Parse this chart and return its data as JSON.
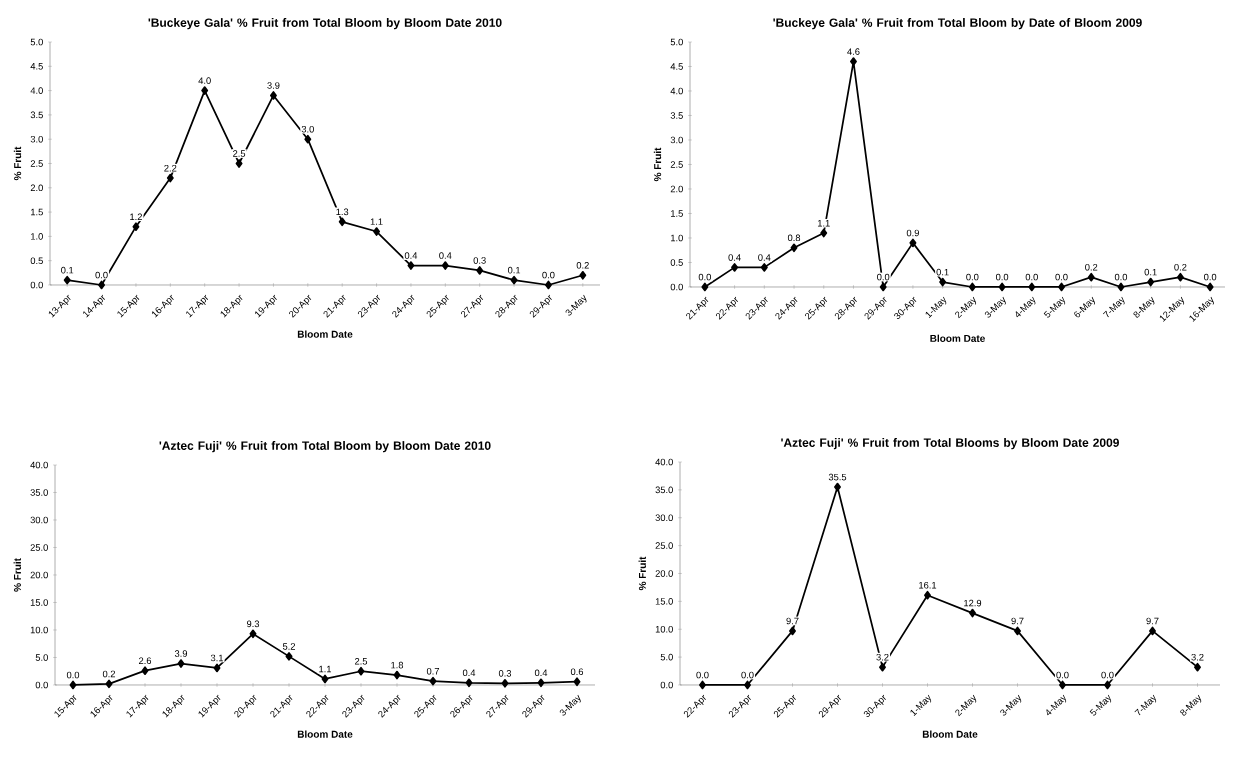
{
  "chart_data": [
    {
      "type": "line",
      "title": "'Buckeye Gala' % Fruit from Total Bloom by Bloom Date 2010",
      "xlabel": "Bloom Date",
      "ylabel": "% Fruit",
      "color": "#000000",
      "marker": "diamond",
      "categories": [
        "13-Apr",
        "14-Apr",
        "15-Apr",
        "16-Apr",
        "17-Apr",
        "18-Apr",
        "19-Apr",
        "20-Apr",
        "21-Apr",
        "23-Apr",
        "24-Apr",
        "25-Apr",
        "27-Apr",
        "28-Apr",
        "29-Apr",
        "3-May"
      ],
      "values": [
        0.1,
        0.0,
        1.2,
        2.2,
        4.0,
        2.5,
        3.9,
        3.0,
        1.3,
        1.1,
        0.4,
        0.4,
        0.3,
        0.1,
        0.0,
        0.2
      ],
      "value_labels": [
        "0.1",
        "0.0",
        "1.2",
        "2.2",
        "4.0",
        "2.5",
        "3.9",
        "3.0",
        "1.3",
        "1.1",
        "0.4",
        "0.4",
        "0.3",
        "0.1",
        "0.0",
        "0.2"
      ],
      "ylim": [
        0,
        5
      ],
      "yticks": [
        {
          "value": 0,
          "label": "0.0"
        },
        {
          "value": 0.5,
          "label": "0.5"
        },
        {
          "value": 1,
          "label": "1.0"
        },
        {
          "value": 1.5,
          "label": "1.5"
        },
        {
          "value": 2,
          "label": "2.0"
        },
        {
          "value": 2.5,
          "label": "2.5"
        },
        {
          "value": 3,
          "label": "3.0"
        },
        {
          "value": 3.5,
          "label": "3.5"
        },
        {
          "value": 4,
          "label": "4.0"
        },
        {
          "value": 4.5,
          "label": "4.5"
        },
        {
          "value": 5,
          "label": "5.0"
        }
      ]
    },
    {
      "type": "line",
      "title": "'Buckeye Gala' % Fruit from Total Bloom by Date of Bloom 2009",
      "xlabel": "Bloom Date",
      "ylabel": "% Fruit",
      "color": "#000000",
      "marker": "diamond",
      "categories": [
        "21-Apr",
        "22-Apr",
        "23-Apr",
        "24-Apr",
        "25-Apr",
        "28-Apr",
        "29-Apr",
        "30-Apr",
        "1-May",
        "2-May",
        "3-May",
        "4-May",
        "5-May",
        "6-May",
        "7-May",
        "8-May",
        "12-May",
        "16-May"
      ],
      "values": [
        0.0,
        0.4,
        0.4,
        0.8,
        1.1,
        4.6,
        0.0,
        0.9,
        0.1,
        0.0,
        0.0,
        0.0,
        0.0,
        0.2,
        0.0,
        0.1,
        0.2,
        0.0
      ],
      "value_labels": [
        "0.0",
        "0.4",
        "0.4",
        "0.8",
        "1.1",
        "4.6",
        "0.0",
        "0.9",
        "0.1",
        "0.0",
        "0.0",
        "0.0",
        "0.0",
        "0.2",
        "0.0",
        "0.1",
        "0.2",
        "0.0"
      ],
      "ylim": [
        0,
        5
      ],
      "yticks": [
        {
          "value": 0,
          "label": "0.0"
        },
        {
          "value": 0.5,
          "label": "0.5"
        },
        {
          "value": 1,
          "label": "1.0"
        },
        {
          "value": 1.5,
          "label": "1.5"
        },
        {
          "value": 2,
          "label": "2.0"
        },
        {
          "value": 2.5,
          "label": "2.5"
        },
        {
          "value": 3,
          "label": "3.0"
        },
        {
          "value": 3.5,
          "label": "3.5"
        },
        {
          "value": 4,
          "label": "4.0"
        },
        {
          "value": 4.5,
          "label": "4.5"
        },
        {
          "value": 5,
          "label": "5.0"
        }
      ]
    },
    {
      "type": "line",
      "title": "'Aztec Fuji' % Fruit from Total Bloom by Bloom Date 2010",
      "xlabel": "Bloom Date",
      "ylabel": "% Fruit",
      "color": "#000000",
      "marker": "diamond",
      "categories": [
        "15-Apr",
        "16-Apr",
        "17-Apr",
        "18-Apr",
        "19-Apr",
        "20-Apr",
        "21-Apr",
        "22-Apr",
        "23-Apr",
        "24-Apr",
        "25-Apr",
        "26-Apr",
        "27-Apr",
        "29-Apr",
        "3-May"
      ],
      "values": [
        0.0,
        0.2,
        2.6,
        3.9,
        3.1,
        9.3,
        5.2,
        1.1,
        2.5,
        1.8,
        0.7,
        0.4,
        0.3,
        0.4,
        0.6
      ],
      "value_labels": [
        "0.0",
        "0.2",
        "2.6",
        "3.9",
        "3.1",
        "9.3",
        "5.2",
        "1.1",
        "2.5",
        "1.8",
        "0.7",
        "0.4",
        "0.3",
        "0.4",
        "0.6"
      ],
      "ylim": [
        0,
        40
      ],
      "yticks": [
        {
          "value": 0,
          "label": "0.0"
        },
        {
          "value": 5,
          "label": "5.0"
        },
        {
          "value": 10,
          "label": "10.0"
        },
        {
          "value": 15,
          "label": "15.0"
        },
        {
          "value": 20,
          "label": "20.0"
        },
        {
          "value": 25,
          "label": "25.0"
        },
        {
          "value": 30,
          "label": "30.0"
        },
        {
          "value": 35,
          "label": "35.0"
        },
        {
          "value": 40,
          "label": "40.0"
        }
      ]
    },
    {
      "type": "line",
      "title": "'Aztec Fuji' % Fruit from Total Blooms by Bloom Date 2009",
      "xlabel": "Bloom Date",
      "ylabel": "% Fruit",
      "color": "#000000",
      "marker": "diamond",
      "categories": [
        "22-Apr",
        "23-Apr",
        "25-Apr",
        "29-Apr",
        "30-Apr",
        "1-May",
        "2-May",
        "3-May",
        "4-May",
        "5-May",
        "7-May",
        "8-May"
      ],
      "values": [
        0.0,
        0.0,
        9.7,
        35.5,
        3.2,
        16.1,
        12.9,
        9.7,
        0.0,
        0.0,
        9.7,
        3.2
      ],
      "value_labels": [
        "0.0",
        "0.0",
        "9.7",
        "35.5",
        "3.2",
        "16.1",
        "12.9",
        "9.7",
        "0.0",
        "0.0",
        "9.7",
        "3.2"
      ],
      "ylim": [
        0,
        40
      ],
      "yticks": [
        {
          "value": 0,
          "label": "0.0"
        },
        {
          "value": 5,
          "label": "5.0"
        },
        {
          "value": 10,
          "label": "10.0"
        },
        {
          "value": 15,
          "label": "15.0"
        },
        {
          "value": 20,
          "label": "20.0"
        },
        {
          "value": 25,
          "label": "25.0"
        },
        {
          "value": 30,
          "label": "30.0"
        },
        {
          "value": 35,
          "label": "35.0"
        },
        {
          "value": 40,
          "label": "40.0"
        }
      ]
    }
  ]
}
